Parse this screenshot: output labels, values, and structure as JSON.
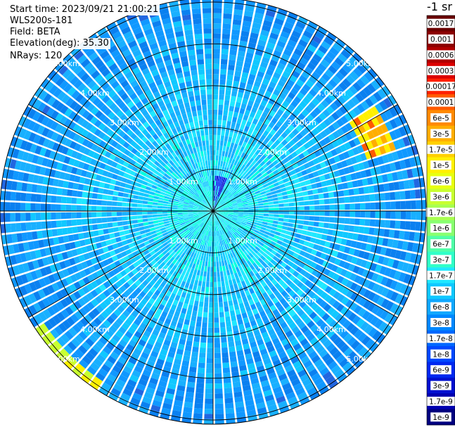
{
  "header": {
    "start_time": "Start time: 2023/09/21 21:00:21",
    "instrument": "WLS200s-181",
    "field": "Field: BETA",
    "elevation": "Elevation(deg): 35.30",
    "nrays": "NRays: 120"
  },
  "colorbar": {
    "unit": "-1 sr",
    "labels": [
      "0.0017",
      "0.001",
      "0.0006",
      "0.0003",
      "0.00017",
      "0.0001",
      "6e-5",
      "3e-5",
      "1.7e-5",
      "1e-5",
      "6e-6",
      "3e-6",
      "1.7e-6",
      "1e-6",
      "6e-7",
      "3e-7",
      "1.7e-7",
      "1e-7",
      "6e-8",
      "3e-8",
      "1.7e-8",
      "1e-8",
      "6e-9",
      "3e-9",
      "1.7e-9",
      "1e-9"
    ],
    "colors": [
      "#6a0000",
      "#8c0000",
      "#b00000",
      "#dc0000",
      "#ff2000",
      "#ff5a00",
      "#ff8a00",
      "#ffae00",
      "#ffd000",
      "#fff000",
      "#e8ff10",
      "#c8ff30",
      "#a8ff50",
      "#88ff70",
      "#50ffa8",
      "#30ffc8",
      "#20e8ff",
      "#10c8ff",
      "#10a8ff",
      "#0088ff",
      "#0068ff",
      "#0048ff",
      "#0028f0",
      "#0010d0",
      "#0000b0",
      "#000080"
    ]
  },
  "chart_data": {
    "type": "polar-ppi",
    "field": "BETA",
    "rays": 120,
    "range_ring_labels": [
      "1.00km",
      "2.00km",
      "3.00km",
      "4.00km",
      "5.00km"
    ],
    "range_rings_km": [
      1,
      2,
      3,
      4,
      5
    ],
    "max_range_km": 5.1,
    "spokes_deg": [
      0,
      30,
      60,
      90,
      120,
      150,
      180,
      210,
      240,
      270,
      300,
      330
    ],
    "features": [
      {
        "description": "enhanced backscatter band",
        "azimuth_deg": [
          58,
          72
        ],
        "range_km": [
          3.9,
          4.6
        ],
        "value": "1e-5 to 6e-5"
      },
      {
        "description": "enhanced backscatter band",
        "azimuth_deg": [
          213,
          237
        ],
        "range_km": [
          4.8,
          5.1
        ],
        "value": "3e-6 to 1e-5"
      },
      {
        "description": "low backscatter region",
        "azimuth_deg": [
          0,
          25
        ],
        "range_km": [
          0,
          0.8
        ],
        "value": "1e-9 to 3e-9"
      }
    ]
  }
}
